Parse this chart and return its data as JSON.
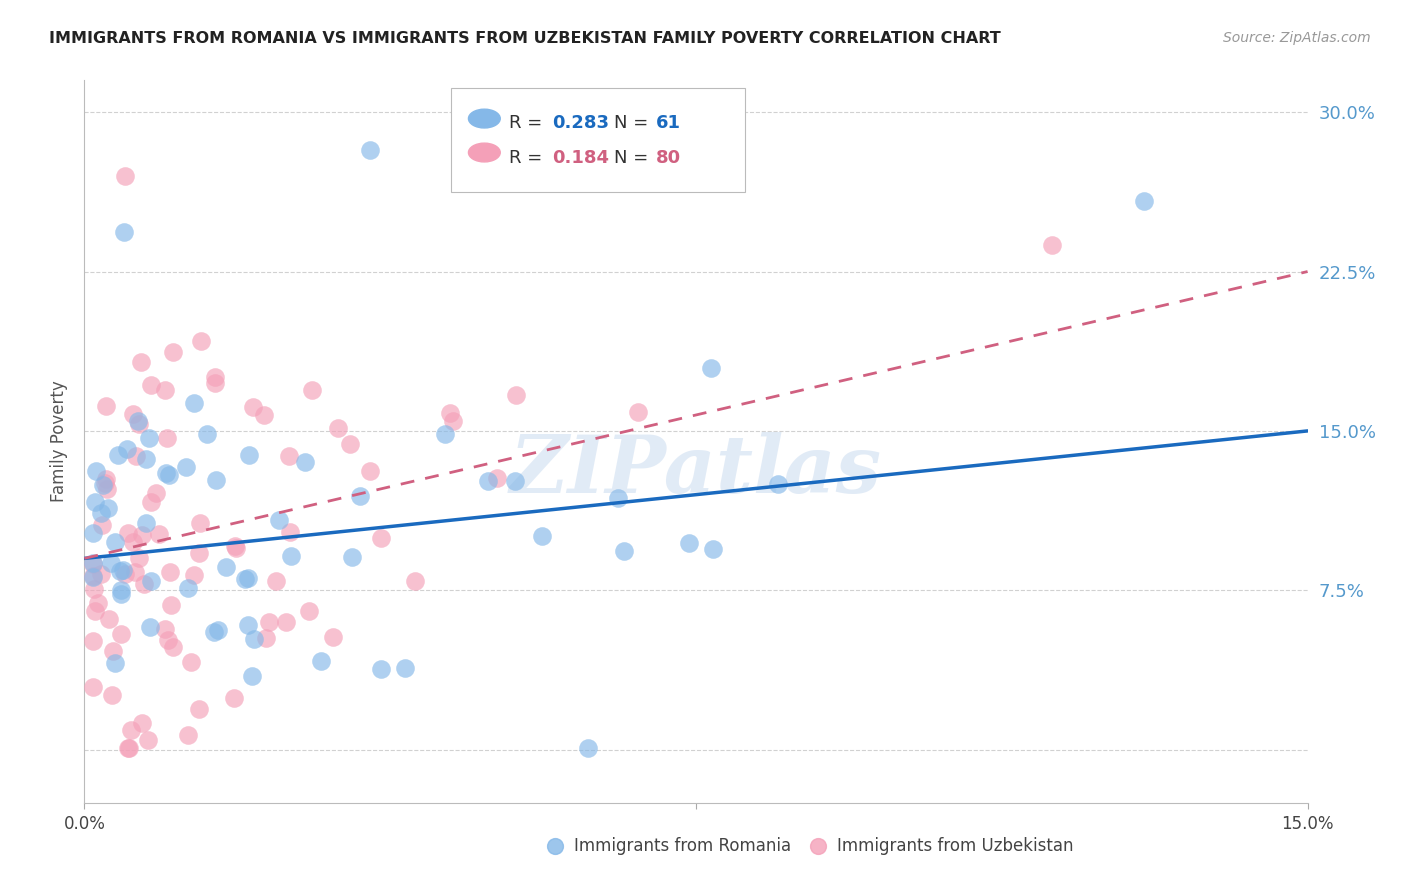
{
  "title": "IMMIGRANTS FROM ROMANIA VS IMMIGRANTS FROM UZBEKISTAN FAMILY POVERTY CORRELATION CHART",
  "source": "Source: ZipAtlas.com",
  "ylabel": "Family Poverty",
  "legend_romania": "Immigrants from Romania",
  "legend_uzbekistan": "Immigrants from Uzbekistan",
  "R_romania": "0.283",
  "N_romania": "61",
  "R_uzbekistan": "0.184",
  "N_uzbekistan": "80",
  "xmin": 0.0,
  "xmax": 0.15,
  "ymin": -0.025,
  "ymax": 0.315,
  "yticks": [
    0.0,
    0.075,
    0.15,
    0.225,
    0.3
  ],
  "ytick_labels": [
    "",
    "7.5%",
    "15.0%",
    "22.5%",
    "30.0%"
  ],
  "color_romania": "#85b8e8",
  "color_uzbekistan": "#f4a0b8",
  "trendline_romania_color": "#1a6abf",
  "trendline_uzbekistan_color": "#d06080",
  "watermark": "ZIPatlas",
  "romania_intercept": 0.09,
  "romania_slope": 0.4,
  "uzbekistan_intercept": 0.085,
  "uzbekistan_slope": 0.9,
  "background_color": "#ffffff",
  "grid_color": "#cccccc",
  "right_label_color": "#5599cc",
  "title_color": "#222222",
  "source_color": "#999999"
}
